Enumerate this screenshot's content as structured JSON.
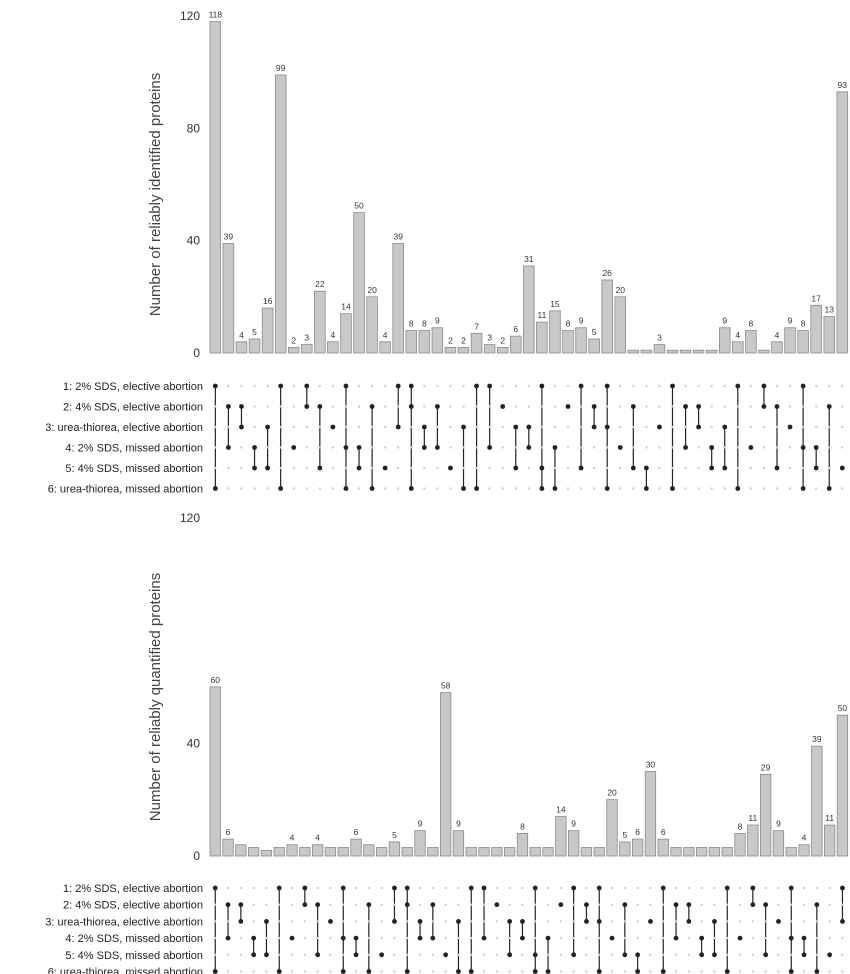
{
  "chart_data": [
    {
      "type": "bar",
      "ylabel": "Number of reliably identified proteins",
      "ylim": [
        0,
        120
      ],
      "yticks": [
        0,
        40,
        80,
        120
      ],
      "sets": [
        "1: 2% SDS, elective abortion",
        "2: 4% SDS, elective abortion",
        "3: urea-thiorea, elective abortion",
        "4: 2% SDS, missed abortion",
        "5: 4% SDS, missed abortion",
        "6: urea-thiorea, missed abortion"
      ],
      "values": [
        118,
        39,
        4,
        5,
        16,
        99,
        2,
        3,
        22,
        4,
        14,
        50,
        20,
        4,
        39,
        8,
        8,
        9,
        2,
        2,
        7,
        3,
        2,
        6,
        31,
        11,
        15,
        8,
        9,
        5,
        26,
        20,
        1,
        1,
        3,
        1,
        1,
        1,
        1,
        9,
        4,
        8,
        1,
        4,
        9,
        8,
        17,
        13,
        93
      ],
      "value_labels": [
        "118",
        "39",
        "4",
        "5",
        "16",
        "99",
        "2",
        "3",
        "22",
        "4",
        "14",
        "50",
        "20",
        "4",
        "39",
        "8",
        "8",
        "9",
        "2",
        "2",
        "7",
        "3",
        "2",
        "6",
        "31",
        "11",
        "15",
        "8",
        "9",
        "5",
        "26",
        "20",
        "",
        "",
        "3",
        "",
        "",
        "",
        "",
        "9",
        "4",
        "8",
        "",
        "4",
        "9",
        "8",
        "17",
        "13",
        "93"
      ]
    },
    {
      "type": "bar",
      "ylabel": "Number of reliably quantified proteins",
      "ylim": [
        0,
        120
      ],
      "yticks": [
        0,
        40,
        120
      ],
      "sets": [
        "1: 2% SDS, elective abortion",
        "2: 4% SDS, elective abortion",
        "3: urea-thiorea, elective abortion",
        "4: 2% SDS, missed abortion",
        "5: 4% SDS, missed abortion",
        "6: urea-thiorea, missed abortion"
      ],
      "values": [
        60,
        6,
        4,
        3,
        2,
        3,
        4,
        3,
        4,
        3,
        3,
        6,
        4,
        3,
        5,
        3,
        9,
        3,
        58,
        9,
        3,
        3,
        3,
        3,
        8,
        3,
        3,
        14,
        9,
        3,
        3,
        20,
        5,
        6,
        30,
        6,
        3,
        3,
        3,
        3,
        3,
        8,
        11,
        29,
        9,
        3,
        4,
        39,
        11,
        50
      ],
      "value_labels": [
        "60",
        "6",
        "",
        "",
        "",
        "",
        "4",
        "",
        "4",
        "",
        "",
        "6",
        "",
        "",
        "5",
        "",
        "9",
        "",
        "58",
        "9",
        "",
        "",
        "",
        "",
        "8",
        "",
        "",
        "14",
        "9",
        "",
        "",
        "20",
        "5",
        "6",
        "30",
        "6",
        "",
        "",
        "",
        "",
        "",
        "8",
        "11",
        "29",
        "9",
        "",
        "4",
        "39",
        "11",
        "50"
      ]
    }
  ]
}
